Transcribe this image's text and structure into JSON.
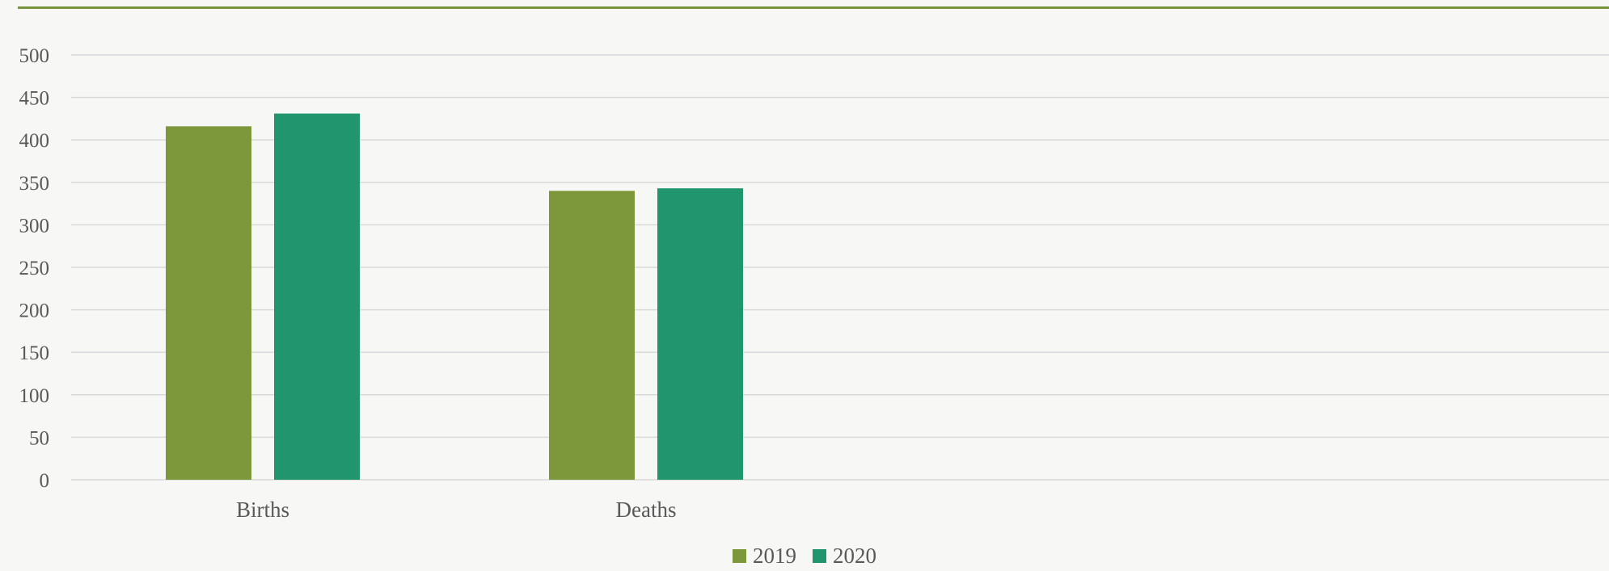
{
  "theme": {
    "accent_rule": "#77933c",
    "gridline": "#d9d9d9",
    "text": "#595959"
  },
  "chart_data": {
    "type": "bar",
    "title": "",
    "xlabel": "",
    "ylabel": "",
    "categories": [
      "Births",
      "Deaths"
    ],
    "series": [
      {
        "name": "2019",
        "color": "#7d973b",
        "values": [
          416,
          340
        ]
      },
      {
        "name": "2020",
        "color": "#21966e",
        "values": [
          431,
          343
        ]
      }
    ],
    "ylim": [
      0,
      500
    ],
    "yticks": [
      0,
      50,
      100,
      150,
      200,
      250,
      300,
      350,
      400,
      450,
      500
    ],
    "ytick_labels": [
      "0",
      "50",
      "100",
      "150",
      "200",
      "250",
      "300",
      "350",
      "400",
      "450",
      "500"
    ],
    "grid": true,
    "legend_position": "bottom-center"
  }
}
